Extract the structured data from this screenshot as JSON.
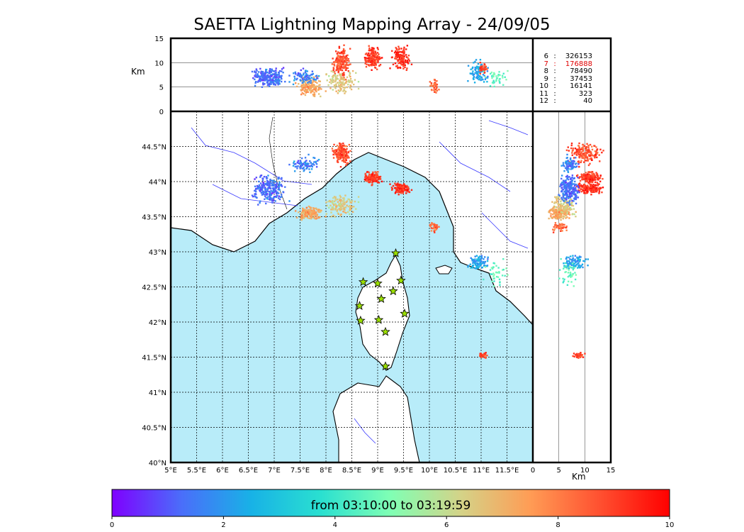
{
  "chart_data": {
    "type": "scatter",
    "title": "SAETTA Lightning Mapping Array - 24/09/05",
    "map": {
      "lon_ticks": [
        "5°E",
        "5.5°E",
        "6°E",
        "6.5°E",
        "7°E",
        "7.5°E",
        "8°E",
        "8.5°E",
        "9°E",
        "9.5°E",
        "10°E",
        "10.5°E",
        "11°E",
        "11.5°E"
      ],
      "lat_ticks": [
        "40°N",
        "40.5°N",
        "41°N",
        "41.5°N",
        "42°N",
        "42.5°N",
        "43°N",
        "43.5°N",
        "44°N",
        "44.5°N"
      ],
      "lon_range": [
        5.0,
        12.0
      ],
      "lat_range": [
        40.0,
        45.0
      ],
      "grid": "dotted",
      "sea_color": "#b8ecf9"
    },
    "altitude_axis": {
      "label": "Km",
      "ticks": [
        "0",
        "5",
        "10",
        "15"
      ],
      "range": [
        0,
        15
      ]
    },
    "counts": [
      {
        "level": "6",
        "value": "326153",
        "color": "#000000"
      },
      {
        "level": "7",
        "value": "176888",
        "color": "#e00000"
      },
      {
        "level": "8",
        "value": "78490",
        "color": "#000000"
      },
      {
        "level": "9",
        "value": "37453",
        "color": "#000000"
      },
      {
        "level": "10",
        "value": "16141",
        "color": "#000000"
      },
      {
        "level": "11",
        "value": "323",
        "color": "#000000"
      },
      {
        "level": "12",
        "value": "40",
        "color": "#000000"
      }
    ],
    "stations": [
      {
        "lon": 9.35,
        "lat": 42.98
      },
      {
        "lon": 8.72,
        "lat": 42.57
      },
      {
        "lon": 9.0,
        "lat": 42.55
      },
      {
        "lon": 9.45,
        "lat": 42.59
      },
      {
        "lon": 9.3,
        "lat": 42.44
      },
      {
        "lon": 9.07,
        "lat": 42.33
      },
      {
        "lon": 8.65,
        "lat": 42.23
      },
      {
        "lon": 9.52,
        "lat": 42.12
      },
      {
        "lon": 8.67,
        "lat": 42.02
      },
      {
        "lon": 9.02,
        "lat": 42.03
      },
      {
        "lon": 9.15,
        "lat": 41.86
      },
      {
        "lon": 9.15,
        "lat": 41.37
      }
    ],
    "clusters": [
      {
        "lon": 8.3,
        "lat": 44.4,
        "rlon": 0.22,
        "rlat": 0.2,
        "alt": 10,
        "ralt": 4,
        "t": 8.8,
        "n": 180
      },
      {
        "lon": 8.9,
        "lat": 44.05,
        "rlon": 0.22,
        "rlat": 0.12,
        "alt": 11,
        "ralt": 3,
        "t": 9.1,
        "n": 150
      },
      {
        "lon": 9.45,
        "lat": 43.9,
        "rlon": 0.25,
        "rlat": 0.1,
        "alt": 11,
        "ralt": 3,
        "t": 9.3,
        "n": 140
      },
      {
        "lon": 7.7,
        "lat": 43.55,
        "rlon": 0.35,
        "rlat": 0.12,
        "alt": 5,
        "ralt": 2.5,
        "t": 7.3,
        "n": 160
      },
      {
        "lon": 8.3,
        "lat": 43.65,
        "rlon": 0.4,
        "rlat": 0.2,
        "alt": 6,
        "ralt": 3,
        "t": 6.5,
        "n": 120
      },
      {
        "lon": 6.9,
        "lat": 43.9,
        "rlon": 0.45,
        "rlat": 0.3,
        "alt": 7,
        "ralt": 2.5,
        "t": 1.3,
        "n": 220
      },
      {
        "lon": 7.6,
        "lat": 44.25,
        "rlon": 0.35,
        "rlat": 0.15,
        "alt": 7,
        "ralt": 2,
        "t": 1.6,
        "n": 80
      },
      {
        "lon": 10.1,
        "lat": 43.35,
        "rlon": 0.12,
        "rlat": 0.1,
        "alt": 5,
        "ralt": 2,
        "t": 8.4,
        "n": 40
      },
      {
        "lon": 10.95,
        "lat": 42.85,
        "rlon": 0.25,
        "rlat": 0.15,
        "alt": 8,
        "ralt": 3,
        "t": 2.2,
        "n": 90
      },
      {
        "lon": 11.05,
        "lat": 41.52,
        "rlon": 0.12,
        "rlat": 0.06,
        "alt": 9,
        "ralt": 1.5,
        "t": 9.0,
        "n": 35
      },
      {
        "lon": 11.3,
        "lat": 42.7,
        "rlon": 0.3,
        "rlat": 0.3,
        "alt": 7,
        "ralt": 3,
        "t": 4.5,
        "n": 40
      }
    ],
    "colorbar": {
      "label": "from 03:10:00 to 03:19:59",
      "ticks": [
        "0",
        "2",
        "4",
        "6",
        "8",
        "10"
      ],
      "range": [
        0,
        10
      ],
      "colors": [
        "#7f00ff",
        "#4a6efa",
        "#18b2e6",
        "#2ae0d0",
        "#80ffb4",
        "#d4d388",
        "#ff9c55",
        "#ff5030",
        "#ff0000"
      ]
    }
  }
}
